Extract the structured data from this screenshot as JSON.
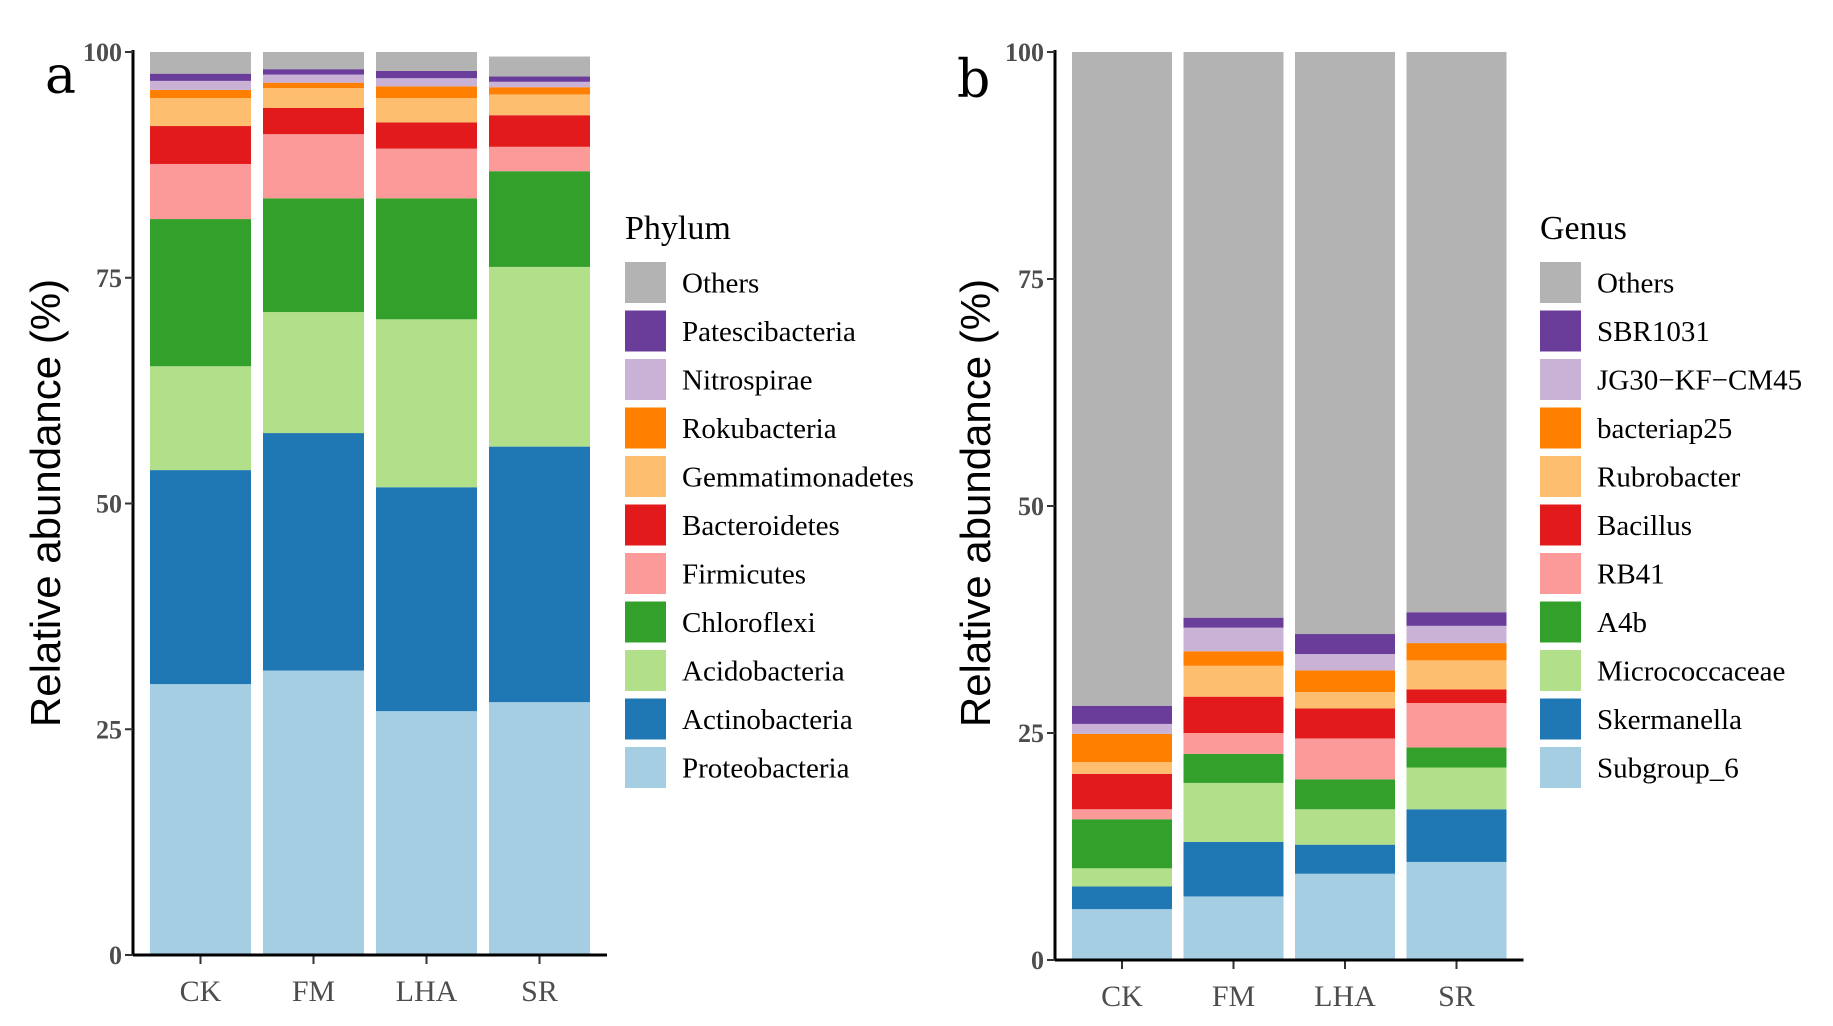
{
  "chart_data": [
    {
      "type": "bar",
      "stacked": true,
      "panel_label": "a",
      "ylabel": "Relative abundance (%)",
      "xlabel": "",
      "ylim": [
        0,
        100
      ],
      "yticks": [
        "0",
        "25",
        "50",
        "75",
        "100"
      ],
      "categories": [
        "CK",
        "FM",
        "LHA",
        "SR"
      ],
      "legend_title": "Phylum",
      "series": [
        {
          "name": "Proteobacteria",
          "color": "#A6CEE3",
          "values": [
            30.0,
            31.5,
            27.0,
            28.0
          ]
        },
        {
          "name": "Actinobacteria",
          "color": "#1F78B4",
          "values": [
            23.7,
            26.3,
            24.8,
            28.3
          ]
        },
        {
          "name": "Acidobacteria",
          "color": "#B2DF8A",
          "values": [
            11.5,
            13.4,
            18.6,
            19.9
          ]
        },
        {
          "name": "Chloroflexi",
          "color": "#33A02C",
          "values": [
            16.3,
            12.6,
            13.4,
            10.6
          ]
        },
        {
          "name": "Firmicutes",
          "color": "#FB9A99",
          "values": [
            6.1,
            7.1,
            5.5,
            2.7
          ]
        },
        {
          "name": "Bacteroidetes",
          "color": "#E31A1C",
          "values": [
            4.2,
            2.9,
            2.9,
            3.5
          ]
        },
        {
          "name": "Gemmatimonadetes",
          "color": "#FDBF6F",
          "values": [
            3.1,
            2.2,
            2.7,
            2.3
          ]
        },
        {
          "name": "Rokubacteria",
          "color": "#FF7F00",
          "values": [
            0.9,
            0.6,
            1.3,
            0.8
          ]
        },
        {
          "name": "Nitrospirae",
          "color": "#CAB2D6",
          "values": [
            1.0,
            0.9,
            0.9,
            0.6
          ]
        },
        {
          "name": "Patescibacteria",
          "color": "#6A3D9A",
          "values": [
            0.8,
            0.6,
            0.8,
            0.6
          ]
        },
        {
          "name": "Others",
          "color": "#B3B3B3",
          "values": [
            2.4,
            1.9,
            2.1,
            2.2
          ]
        }
      ]
    },
    {
      "type": "bar",
      "stacked": true,
      "panel_label": "b",
      "ylabel": "Relative abundance (%)",
      "xlabel": "",
      "ylim": [
        0,
        100
      ],
      "yticks": [
        "0",
        "25",
        "50",
        "75",
        "100"
      ],
      "categories": [
        "CK",
        "FM",
        "LHA",
        "SR"
      ],
      "legend_title": "Genus",
      "series": [
        {
          "name": "Subgroup_6",
          "color": "#A6CEE3",
          "values": [
            5.6,
            7.0,
            9.5,
            10.8
          ]
        },
        {
          "name": "Skermanella",
          "color": "#1F78B4",
          "values": [
            2.5,
            6.0,
            3.2,
            5.8
          ]
        },
        {
          "name": "Micrococcaceae",
          "color": "#B2DF8A",
          "values": [
            2.0,
            6.5,
            3.9,
            4.6
          ]
        },
        {
          "name": "A4b",
          "color": "#33A02C",
          "values": [
            5.4,
            3.2,
            3.3,
            2.2
          ]
        },
        {
          "name": "RB41",
          "color": "#FB9A99",
          "values": [
            1.1,
            2.3,
            4.5,
            4.9
          ]
        },
        {
          "name": "Bacillus",
          "color": "#E31A1C",
          "values": [
            3.9,
            4.0,
            3.3,
            1.5
          ]
        },
        {
          "name": "Rubrobacter",
          "color": "#FDBF6F",
          "values": [
            1.3,
            3.4,
            1.8,
            3.2
          ]
        },
        {
          "name": "bacteriap25",
          "color": "#FF7F00",
          "values": [
            3.1,
            1.6,
            2.4,
            1.9
          ]
        },
        {
          "name": "JG30−KF−CM45",
          "color": "#CAB2D6",
          "values": [
            1.1,
            2.6,
            1.8,
            1.9
          ]
        },
        {
          "name": "SBR1031",
          "color": "#6A3D9A",
          "values": [
            2.0,
            1.1,
            2.2,
            1.5
          ]
        },
        {
          "name": "Others",
          "color": "#B3B3B3",
          "values": [
            72.0,
            62.3,
            64.1,
            61.7
          ]
        }
      ]
    }
  ]
}
